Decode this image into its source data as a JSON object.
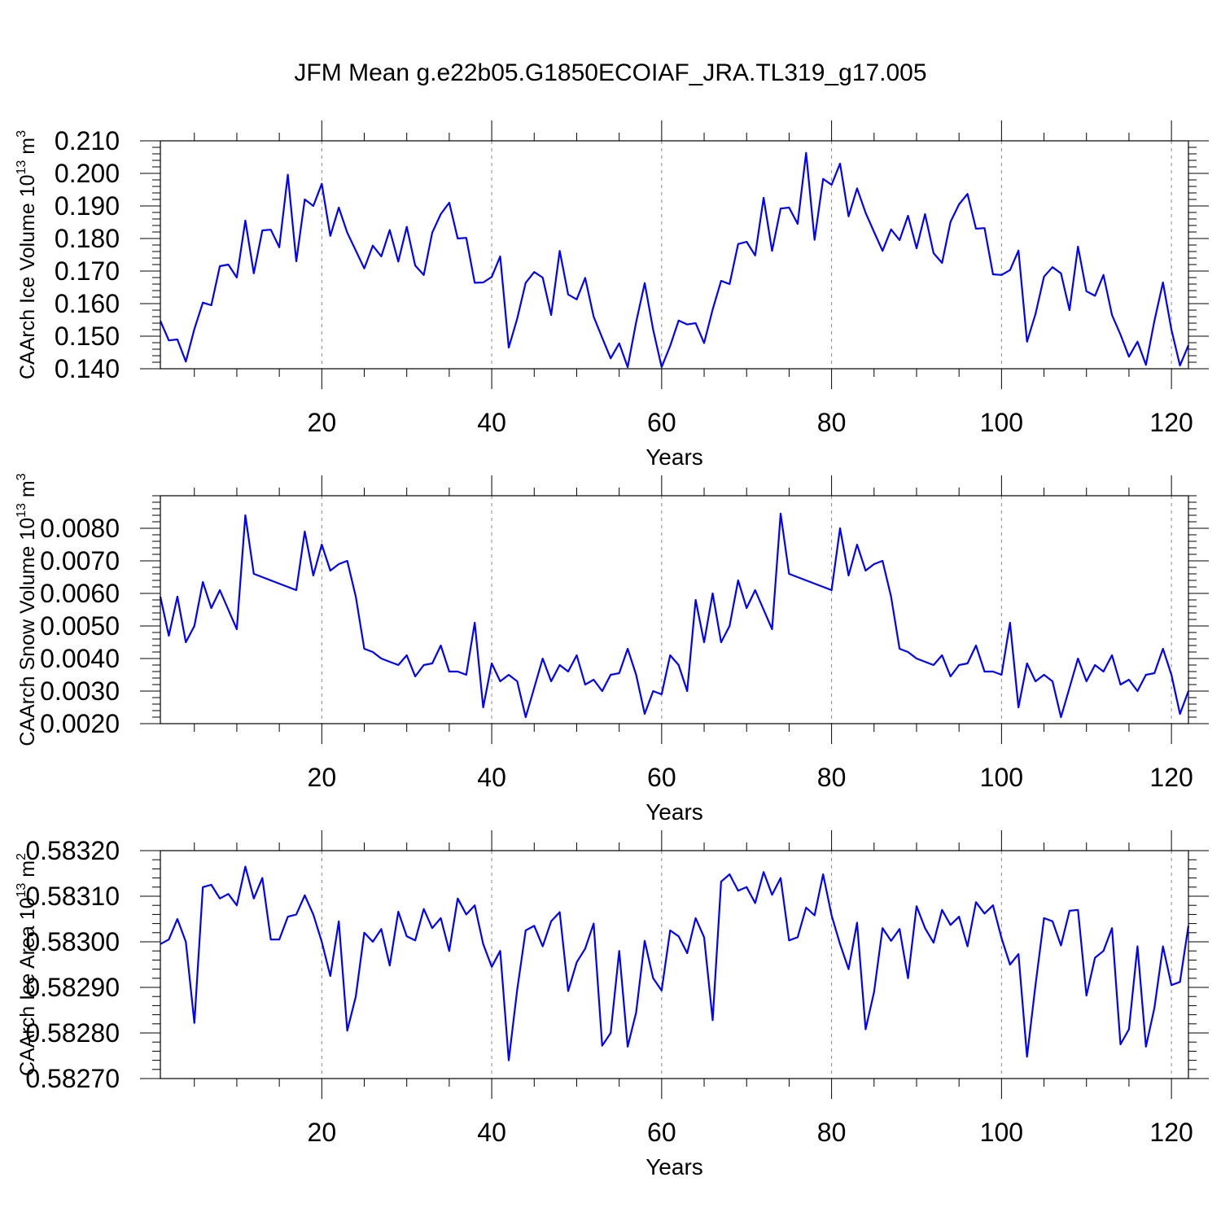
{
  "chart_data": {
    "title": "JFM Mean g.e22b05.G1850ECOIAF_JRA.TL319_g17.005",
    "panels": [
      {
        "type": "line",
        "ylabel": "CAArch Ice Volume 10",
        "ylabel_exp": "13",
        "ylabel_unit": " m",
        "ylabel_unit_exp": "3",
        "xlabel": "Years",
        "xlim": [
          1,
          122
        ],
        "ylim": [
          0.14,
          0.21
        ],
        "yticks": [
          "0.140",
          "0.150",
          "0.160",
          "0.170",
          "0.180",
          "0.190",
          "0.200",
          "0.210"
        ],
        "xticks": [
          "20",
          "40",
          "60",
          "80",
          "100",
          "120"
        ],
        "color": "#0000ff",
        "values": [
          0.1547,
          0.1487,
          0.149,
          0.1422,
          0.1522,
          0.1603,
          0.1595,
          0.1715,
          0.172,
          0.168,
          0.1855,
          0.1693,
          0.1825,
          0.1827,
          0.1773,
          0.1996,
          0.173,
          0.192,
          0.19,
          0.1968,
          0.1808,
          0.1895,
          0.1818,
          0.1763,
          0.1708,
          0.1778,
          0.1745,
          0.1826,
          0.1729,
          0.1836,
          0.1717,
          0.1688,
          0.1818,
          0.1875,
          0.191,
          0.18,
          0.1802,
          0.1664,
          0.1665,
          0.1682,
          0.1745,
          0.1465,
          0.1554,
          0.1664,
          0.1697,
          0.168,
          0.1565,
          0.1762,
          0.1628,
          0.1613,
          0.1679,
          0.156,
          0.1495,
          0.1432,
          0.1478,
          0.1405,
          0.1543,
          0.1663,
          0.152,
          0.1405,
          0.147,
          0.1548,
          0.1536,
          0.154,
          0.1479,
          0.1582,
          0.167,
          0.166,
          0.1783,
          0.179,
          0.1748,
          0.1925,
          0.1762,
          0.1892,
          0.1895,
          0.1845,
          0.2063,
          0.1796,
          0.1983,
          0.1965,
          0.203,
          0.1868,
          0.1954,
          0.1879,
          0.182,
          0.1762,
          0.1828,
          0.1795,
          0.187,
          0.177,
          0.1875,
          0.1755,
          0.1725,
          0.1851,
          0.1905,
          0.1937,
          0.183,
          0.1832,
          0.169,
          0.1688,
          0.1703,
          0.1763,
          0.1483,
          0.1568,
          0.1683,
          0.1712,
          0.1693,
          0.158,
          0.1775,
          0.1638,
          0.1624,
          0.1688,
          0.1565,
          0.1505,
          0.1437,
          0.1483,
          0.1412,
          0.1547,
          0.1665,
          0.152,
          0.141,
          0.1472
        ]
      },
      {
        "type": "line",
        "ylabel": "CAArch Snow Volume 10",
        "ylabel_exp": "13",
        "ylabel_unit": " m",
        "ylabel_unit_exp": "3",
        "xlabel": "Years",
        "xlim": [
          1,
          122
        ],
        "ylim": [
          0.002,
          0.009
        ],
        "yticks": [
          "0.0020",
          "0.0030",
          "0.0040",
          "0.0050",
          "0.0060",
          "0.0070",
          "0.0080"
        ],
        "xticks": [
          "20",
          "40",
          "60",
          "80",
          "100",
          "120"
        ],
        "color": "#0000ff",
        "values": [
          0.0059,
          0.0047,
          0.0059,
          0.0045,
          0.005,
          0.00635,
          0.00555,
          0.0061,
          0.0055,
          0.0049,
          0.0084,
          0.0066,
          0.0065,
          0.0064,
          0.0063,
          0.0062,
          0.0061,
          0.0079,
          0.00655,
          0.0075,
          0.0067,
          0.0069,
          0.007,
          0.0059,
          0.0043,
          0.0042,
          0.004,
          0.0039,
          0.0038,
          0.0041,
          0.00345,
          0.0038,
          0.00385,
          0.0044,
          0.0036,
          0.0036,
          0.0035,
          0.0051,
          0.0025,
          0.00385,
          0.0033,
          0.0035,
          0.0033,
          0.0022,
          0.0031,
          0.004,
          0.0033,
          0.0038,
          0.0036,
          0.0041,
          0.0032,
          0.00335,
          0.003,
          0.0035,
          0.00355,
          0.0043,
          0.0035,
          0.0023,
          0.003,
          0.0029,
          0.0041,
          0.0038,
          0.003,
          0.0058,
          0.0045,
          0.006,
          0.0045,
          0.005,
          0.0064,
          0.00555,
          0.0061,
          0.0055,
          0.0049,
          0.00845,
          0.0066,
          0.0065,
          0.0064,
          0.0063,
          0.0062,
          0.0061,
          0.008,
          0.00655,
          0.0075,
          0.0067,
          0.0069,
          0.007,
          0.0059,
          0.0043,
          0.0042,
          0.004,
          0.0039,
          0.0038,
          0.0041,
          0.00345,
          0.0038,
          0.00385,
          0.0044,
          0.0036,
          0.0036,
          0.0035,
          0.0051,
          0.0025,
          0.00385,
          0.0033,
          0.0035,
          0.0033,
          0.0022,
          0.0031,
          0.004,
          0.0033,
          0.0038,
          0.0036,
          0.0041,
          0.0032,
          0.00335,
          0.003,
          0.0035,
          0.00355,
          0.0043,
          0.0035,
          0.0023,
          0.003
        ]
      },
      {
        "type": "line",
        "ylabel": "CAArch Ice Area 10",
        "ylabel_exp": "13",
        "ylabel_unit": " m",
        "ylabel_unit_exp": "2",
        "xlabel": "Years",
        "xlim": [
          1,
          122
        ],
        "ylim": [
          0.5827,
          0.5832
        ],
        "yticks": [
          "0.58270",
          "0.58280",
          "0.58290",
          "0.58300",
          "0.58310",
          "0.58320"
        ],
        "xticks": [
          "20",
          "40",
          "60",
          "80",
          "100",
          "120"
        ],
        "color": "#0000ff",
        "values": [
          0.582995,
          0.583005,
          0.58305,
          0.583,
          0.582822,
          0.58312,
          0.583125,
          0.583095,
          0.583105,
          0.58308,
          0.583165,
          0.583095,
          0.58314,
          0.583005,
          0.583005,
          0.583055,
          0.58306,
          0.583102,
          0.58306,
          0.583,
          0.582925,
          0.583045,
          0.582805,
          0.58288,
          0.58302,
          0.583,
          0.583028,
          0.582948,
          0.583066,
          0.583012,
          0.583003,
          0.583072,
          0.58303,
          0.583052,
          0.58298,
          0.583095,
          0.58306,
          0.58308,
          0.582995,
          0.582945,
          0.58298,
          0.58274,
          0.582895,
          0.583025,
          0.583035,
          0.58299,
          0.583045,
          0.583065,
          0.582892,
          0.582955,
          0.582985,
          0.58304,
          0.582772,
          0.5828,
          0.58298,
          0.58277,
          0.582845,
          0.583002,
          0.58292,
          0.582893,
          0.583025,
          0.583012,
          0.582975,
          0.583052,
          0.58301,
          0.582828,
          0.583132,
          0.583148,
          0.583112,
          0.58312,
          0.583085,
          0.583153,
          0.583103,
          0.58314,
          0.583003,
          0.58301,
          0.583075,
          0.583058,
          0.583148,
          0.583058,
          0.582995,
          0.58294,
          0.583042,
          0.582808,
          0.58289,
          0.58303,
          0.583002,
          0.583028,
          0.58292,
          0.583078,
          0.58303,
          0.582998,
          0.58307,
          0.583037,
          0.583055,
          0.58299,
          0.583087,
          0.583062,
          0.58308,
          0.583008,
          0.58295,
          0.582973,
          0.582748,
          0.582905,
          0.583052,
          0.583045,
          0.582992,
          0.583068,
          0.58307,
          0.582882,
          0.582965,
          0.58298,
          0.58303,
          0.582775,
          0.582808,
          0.58299,
          0.58277,
          0.582855,
          0.58299,
          0.582905,
          0.582912,
          0.583035
        ]
      }
    ]
  }
}
